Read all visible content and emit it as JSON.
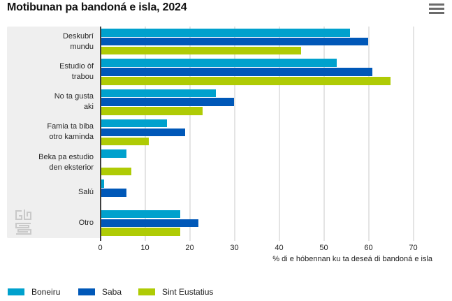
{
  "header": {
    "title": "Motibunan pa bandoná e isla, 2024"
  },
  "icons": {
    "menu": "hamburger-icon",
    "watermark": "cbs-logo"
  },
  "chart_data": {
    "type": "bar",
    "orientation": "horizontal",
    "title": "Motibunan pa bandoná e isla, 2024",
    "categories": [
      "Deskubrí mundu",
      "Estudio òf trabou",
      "No ta gusta aki",
      "Famia ta biba otro kaminda",
      "Beka pa estudio den eksterior",
      "Salú",
      "Otro"
    ],
    "category_lines": [
      [
        "Deskubrí",
        "mundu"
      ],
      [
        "Estudio òf",
        "trabou"
      ],
      [
        "No ta gusta",
        "aki"
      ],
      [
        "Famia ta biba",
        "otro kaminda"
      ],
      [
        "Beka pa estudio",
        "den eksterior"
      ],
      [
        "Salú"
      ],
      [
        "Otro"
      ]
    ],
    "series": [
      {
        "name": "Boneiru",
        "color": "#00a1cd",
        "values": [
          56,
          53,
          26,
          15,
          6,
          1,
          18
        ]
      },
      {
        "name": "Saba",
        "color": "#0058b8",
        "values": [
          60,
          61,
          30,
          19,
          0,
          6,
          22
        ]
      },
      {
        "name": "Sint Eustatius",
        "color": "#afcb05",
        "values": [
          45,
          65,
          23,
          11,
          7,
          0,
          18
        ]
      }
    ],
    "xlabel": "% di e hóbennan ku ta deseá di bandoná e isla",
    "x_ticks": [
      0,
      10,
      20,
      30,
      40,
      50,
      60,
      70
    ],
    "xlim": [
      0,
      77
    ],
    "grid": "vertical",
    "legend_position": "bottom"
  },
  "colors": {
    "panel_bg": "#efefef",
    "gridline": "#e4e4e4",
    "axis_line": "#3f3f3f",
    "text": "#222222",
    "menu_icon": "#6b6b6b",
    "logo": "#c9c9c9"
  }
}
